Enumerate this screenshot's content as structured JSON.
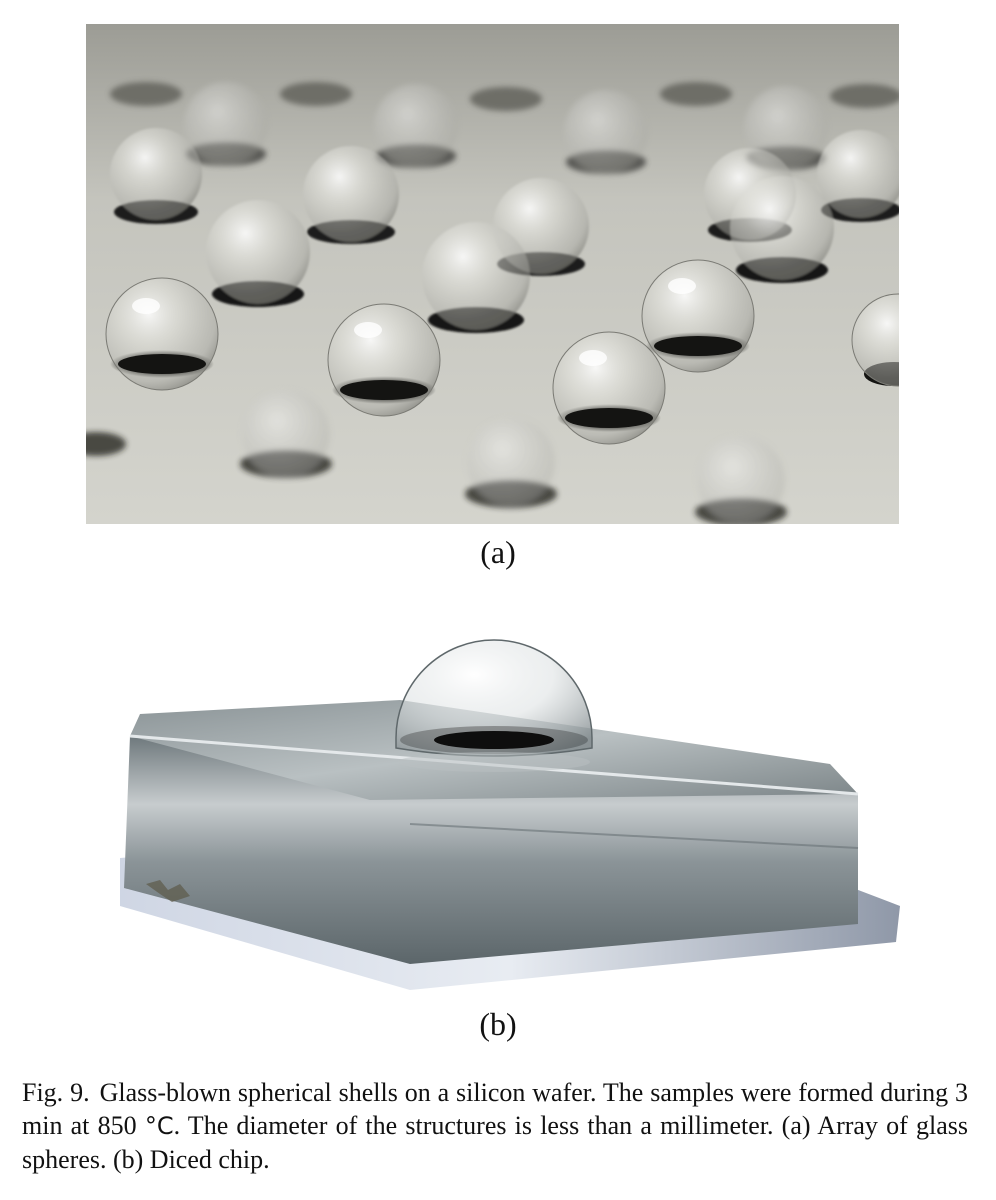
{
  "figure": {
    "panel_a": {
      "label": "(a)",
      "subject": "Array of glass spheres on wafer",
      "colors": {
        "background": "#c9c9c2",
        "sphere_shadow": "#1a1a1a"
      }
    },
    "panel_b": {
      "label": "(b)",
      "subject": "Single glass sphere on diced chip",
      "colors": {
        "chip": "#8e979a",
        "background": "#ffffff"
      }
    },
    "caption": {
      "fig_number": "Fig. 9.",
      "text_1": "Glass-blown spherical shells on a silicon wafer. The samples were formed during 3 min at 850 ",
      "unit": "°C",
      "text_2": ". The diameter of the structures is less than a millimeter. (a) Array of glass spheres. (b) Diced chip."
    }
  }
}
